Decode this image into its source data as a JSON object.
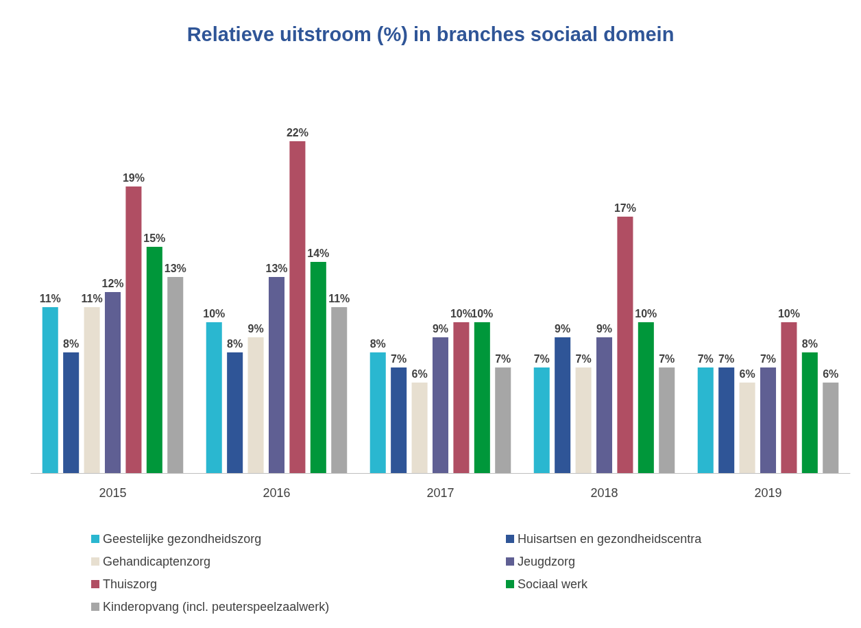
{
  "chart_data": {
    "type": "bar",
    "title": "Relatieve uitstroom (%) in branches sociaal domein",
    "categories": [
      "2015",
      "2016",
      "2017",
      "2018",
      "2019"
    ],
    "series": [
      {
        "name": "Geestelijke gezondheidszorg",
        "color": "#2ab7d0",
        "values": [
          11,
          10,
          8,
          7,
          7
        ],
        "value_labels": [
          "11%",
          "10%",
          "8%",
          "7%",
          "7%"
        ]
      },
      {
        "name": "Huisartsen en gezondheidscentra",
        "color": "#2f5597",
        "values": [
          8,
          8,
          7,
          9,
          7
        ],
        "value_labels": [
          "8%",
          "8%",
          "7%",
          "9%",
          "7%"
        ]
      },
      {
        "name": "Gehandicaptenzorg",
        "color": "#e7dfd0",
        "values": [
          11,
          9,
          6,
          7,
          6
        ],
        "value_labels": [
          "11%",
          "9%",
          "6%",
          "7%",
          "6%"
        ]
      },
      {
        "name": "Jeugdzorg",
        "color": "#5f5f93",
        "values": [
          12,
          13,
          9,
          9,
          7
        ],
        "value_labels": [
          "12%",
          "13%",
          "9%",
          "9%",
          "7%"
        ]
      },
      {
        "name": "Thuiszorg",
        "color": "#b04e63",
        "values": [
          19,
          22,
          10,
          17,
          10
        ],
        "value_labels": [
          "19%",
          "22%",
          "10%",
          "17%",
          "10%"
        ]
      },
      {
        "name": "Sociaal werk",
        "color": "#00973a",
        "values": [
          15,
          14,
          10,
          10,
          8
        ],
        "value_labels": [
          "15%",
          "14%",
          "10%",
          "10%",
          "8%"
        ]
      },
      {
        "name": "Kinderopvang (incl. peuterspeelzaalwerk)",
        "color": "#a6a6a6",
        "values": [
          13,
          11,
          7,
          7,
          6
        ],
        "value_labels": [
          "13%",
          "11%",
          "7%",
          "7%",
          "6%"
        ]
      }
    ],
    "legend": "bottom"
  }
}
